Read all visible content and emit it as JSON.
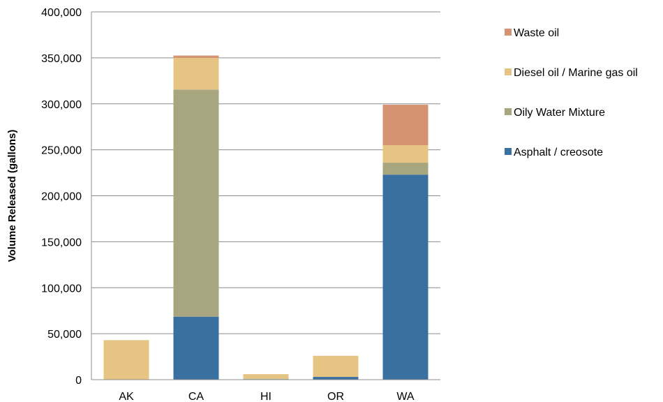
{
  "chart_data": {
    "type": "bar",
    "stacked": true,
    "title": "",
    "xlabel": "",
    "ylabel": "Volume Released (gallons)",
    "ylim": [
      0,
      400000
    ],
    "ytick_step": 50000,
    "yticks": [
      "0",
      "50,000",
      "100,000",
      "150,000",
      "200,000",
      "250,000",
      "300,000",
      "350,000",
      "400,000"
    ],
    "grid": "horizontal",
    "legend_position": "right",
    "categories": [
      "AK",
      "CA",
      "HI",
      "OR",
      "WA"
    ],
    "series": [
      {
        "name": "Asphalt / creosote",
        "color": "#3A70A0",
        "values": [
          0,
          68500,
          500,
          3000,
          223000
        ]
      },
      {
        "name": "Oily Water Mixture",
        "color": "#A7A67E",
        "values": [
          0,
          247000,
          500,
          0,
          13000
        ]
      },
      {
        "name": "Diesel oil / Marine gas oil",
        "color": "#E6C584",
        "values": [
          43000,
          34500,
          5000,
          23000,
          19000
        ]
      },
      {
        "name": "Waste oil",
        "color": "#D69373",
        "values": [
          0,
          2500,
          0,
          0,
          44000
        ]
      }
    ]
  }
}
